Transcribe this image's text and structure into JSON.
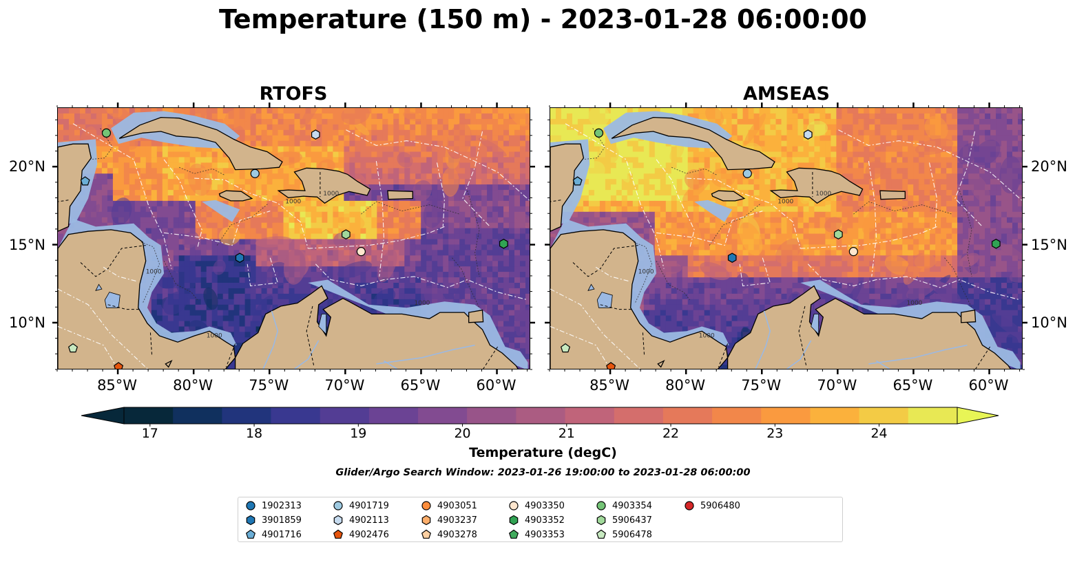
{
  "title": "Temperature (150 m) - 2023-01-28 06:00:00",
  "panels": [
    {
      "id": "rtofs",
      "title": "RTOFS"
    },
    {
      "id": "amseas",
      "title": "AMSEAS"
    }
  ],
  "axes": {
    "lon_labels": [
      "85°W",
      "80°W",
      "75°W",
      "70°W",
      "65°W",
      "60°W"
    ],
    "lat_labels": [
      "20°N",
      "15°N",
      "10°N"
    ]
  },
  "colorbar": {
    "label": "Temperature (degC)",
    "ticks": [
      "17",
      "18",
      "19",
      "20",
      "21",
      "22",
      "23",
      "24"
    ],
    "min": 16.75,
    "max": 24.75,
    "colors": [
      "#07283a",
      "#10305e",
      "#21347c",
      "#393890",
      "#533d94",
      "#6b4394",
      "#824b91",
      "#985489",
      "#ab5c82",
      "#c0647a",
      "#d46e6c",
      "#e5795a",
      "#f2874a",
      "#fa9a3f",
      "#fbb13c",
      "#f3cb45",
      "#e8e854"
    ],
    "extend_low_color": "#07283a",
    "extend_high_color": "#e8f556"
  },
  "search_window": "Glider/Argo Search Window: 2023-01-26 19:00:00 to 2023-01-28 06:00:00",
  "legend": [
    {
      "label": "1902313",
      "marker": "circle",
      "color": "#1f77b4"
    },
    {
      "label": "3901859",
      "marker": "hexagon",
      "color": "#1f77b4"
    },
    {
      "label": "4901716",
      "marker": "pentagon",
      "color": "#6baed6"
    },
    {
      "label": "4901719",
      "marker": "circle",
      "color": "#9ecae1"
    },
    {
      "label": "4902113",
      "marker": "hexagon",
      "color": "#c6dbef"
    },
    {
      "label": "4902476",
      "marker": "pentagon",
      "color": "#e6550d"
    },
    {
      "label": "4903051",
      "marker": "circle",
      "color": "#fd8d3c"
    },
    {
      "label": "4903237",
      "marker": "hexagon",
      "color": "#fdae6b"
    },
    {
      "label": "4903278",
      "marker": "pentagon",
      "color": "#fdd0a2"
    },
    {
      "label": "4903350",
      "marker": "circle",
      "color": "#fee6ce"
    },
    {
      "label": "4903352",
      "marker": "hexagon",
      "color": "#31a354"
    },
    {
      "label": "4903353",
      "marker": "pentagon",
      "color": "#41ab5d"
    },
    {
      "label": "4903354",
      "marker": "circle",
      "color": "#74c476"
    },
    {
      "label": "5906437",
      "marker": "hexagon",
      "color": "#a1d99b"
    },
    {
      "label": "5906478",
      "marker": "pentagon",
      "color": "#c7e9c0"
    },
    {
      "label": "5906480",
      "marker": "circle",
      "color": "#d62728"
    }
  ],
  "floats": [
    {
      "id": "4903354",
      "lon": -85.8,
      "lat": 22.2
    },
    {
      "id": "4901716",
      "lon": -87.2,
      "lat": 19.1
    },
    {
      "id": "4902113",
      "lon": -72.0,
      "lat": 22.1
    },
    {
      "id": "4901719",
      "lon": -76.0,
      "lat": 19.6
    },
    {
      "id": "5906437",
      "lon": -70.0,
      "lat": 15.7
    },
    {
      "id": "4903350",
      "lon": -69.0,
      "lat": 14.6
    },
    {
      "id": "4903352",
      "lon": -59.6,
      "lat": 15.1
    },
    {
      "id": "3901859",
      "lon": -77.0,
      "lat": 14.2
    },
    {
      "id": "5906478",
      "lon": -88.0,
      "lat": 8.4
    },
    {
      "id": "4902476",
      "lon": -85.0,
      "lat": 7.2
    }
  ]
}
